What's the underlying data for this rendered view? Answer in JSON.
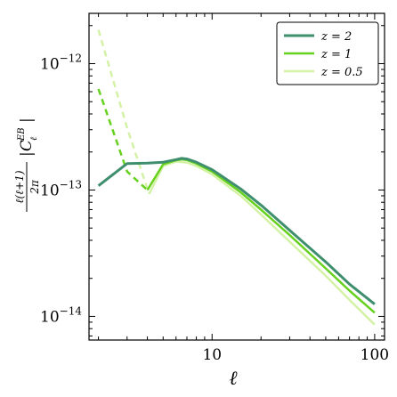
{
  "chart_data": {
    "type": "line",
    "xlabel": "ℓ",
    "ylabel": "ℓ(ℓ+1)/2π |C_ℓ^EB|",
    "xscale": "log",
    "yscale": "log",
    "xlim": [
      1.75,
      115
    ],
    "ylim": [
      6.5e-15,
      2.5e-12
    ],
    "xticks": [
      {
        "value": 10,
        "label": "10"
      },
      {
        "value": 100,
        "label": "100"
      }
    ],
    "yticks": [
      {
        "value": 1e-14,
        "base": "10",
        "exp": "−14"
      },
      {
        "value": 1e-13,
        "base": "10",
        "exp": "−13"
      },
      {
        "value": 1e-12,
        "base": "10",
        "exp": "−12"
      }
    ],
    "legend_position": "top-right",
    "grid": false,
    "series": [
      {
        "name": "z = 2",
        "legend_label": "z = 2",
        "color": "#3f8f6f",
        "width": 3,
        "dashed_x": [],
        "dashed_y": [],
        "x": [
          2,
          3,
          4,
          5,
          6,
          6.5,
          7,
          8,
          10,
          15,
          20,
          30,
          50,
          70,
          100
        ],
        "y": [
          1.08e-13,
          1.62e-13,
          1.63e-13,
          1.66e-13,
          1.74e-13,
          1.78e-13,
          1.76e-13,
          1.66e-13,
          1.45e-13,
          1.02e-13,
          7.6e-14,
          4.8e-14,
          2.7e-14,
          1.8e-14,
          1.25e-14
        ]
      },
      {
        "name": "z = 1",
        "legend_label": "z = 1",
        "color": "#66d11e",
        "width": 2.5,
        "dashed_x": [
          2,
          3,
          4
        ],
        "dashed_y": [
          6.3e-13,
          1.4e-13,
          1e-13
        ],
        "x": [
          4,
          5,
          6,
          6.5,
          7,
          8,
          10,
          15,
          20,
          30,
          50,
          70,
          100
        ],
        "y": [
          1e-13,
          1.6e-13,
          1.72e-13,
          1.75e-13,
          1.73e-13,
          1.62e-13,
          1.4e-13,
          9.6e-14,
          7e-14,
          4.4e-14,
          2.4e-14,
          1.6e-14,
          1.07e-14
        ]
      },
      {
        "name": "z = 0.5",
        "legend_label": "z = 0.5",
        "color": "#d4f2a6",
        "width": 2.5,
        "dashed_x": [
          2,
          3,
          4.1
        ],
        "dashed_y": [
          1.85e-12,
          3.1e-13,
          9.3e-14
        ],
        "x": [
          4.1,
          5,
          6,
          7,
          8,
          10,
          15,
          20,
          30,
          50,
          70,
          100
        ],
        "y": [
          9.3e-14,
          1.55e-13,
          1.68e-13,
          1.65e-13,
          1.55e-13,
          1.33e-13,
          9e-14,
          6.4e-14,
          3.9e-14,
          2.1e-14,
          1.35e-14,
          8.6e-15
        ]
      }
    ]
  }
}
